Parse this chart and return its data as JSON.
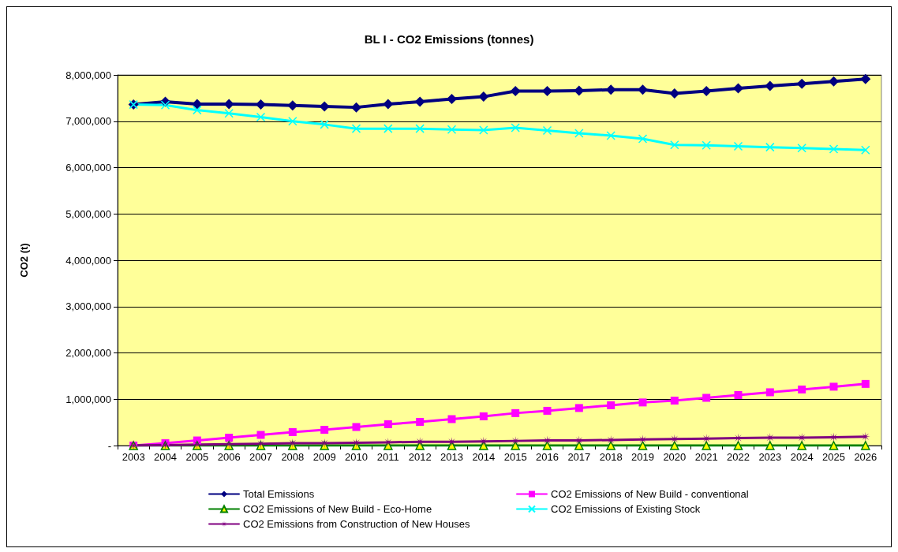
{
  "chart_data": {
    "type": "line",
    "title": "BL I - CO2 Emissions (tonnes)",
    "ylabel": "CO2 (t)",
    "categories": [
      "2003",
      "2004",
      "2005",
      "2006",
      "2007",
      "2008",
      "2009",
      "2010",
      "2011",
      "2012",
      "2013",
      "2014",
      "2015",
      "2016",
      "2017",
      "2018",
      "2019",
      "2020",
      "2021",
      "2022",
      "2023",
      "2024",
      "2025",
      "2026"
    ],
    "ylim": [
      0,
      8000000
    ],
    "yticks": [
      {
        "value": 0,
        "label": "-"
      },
      {
        "value": 1000000,
        "label": "1,000,000"
      },
      {
        "value": 2000000,
        "label": "2,000,000"
      },
      {
        "value": 3000000,
        "label": "3,000,000"
      },
      {
        "value": 4000000,
        "label": "4,000,000"
      },
      {
        "value": 5000000,
        "label": "5,000,000"
      },
      {
        "value": 6000000,
        "label": "6,000,000"
      },
      {
        "value": 7000000,
        "label": "7,000,000"
      },
      {
        "value": 8000000,
        "label": "8,000,000"
      }
    ],
    "grid": "y",
    "legend": "bottom",
    "series": [
      {
        "name": "Total Emissions",
        "color": "#000080",
        "marker": "diamond",
        "values": [
          7360000,
          7420000,
          7370000,
          7370000,
          7360000,
          7340000,
          7320000,
          7300000,
          7370000,
          7420000,
          7480000,
          7530000,
          7650000,
          7650000,
          7660000,
          7680000,
          7680000,
          7600000,
          7650000,
          7710000,
          7760000,
          7810000,
          7860000,
          7910000
        ]
      },
      {
        "name": "CO2 Emissions of New Build - conventional",
        "color": "#ff00ff",
        "marker": "square",
        "values": [
          0,
          50000,
          110000,
          170000,
          230000,
          290000,
          340000,
          400000,
          460000,
          510000,
          570000,
          630000,
          700000,
          750000,
          810000,
          870000,
          930000,
          970000,
          1030000,
          1090000,
          1150000,
          1210000,
          1270000,
          1330000
        ]
      },
      {
        "name": "CO2 Emissions of New Build - Eco-Home",
        "color": "#008000",
        "marker": "triangle",
        "values": [
          0,
          0,
          0,
          0,
          0,
          0,
          0,
          0,
          0,
          0,
          0,
          0,
          0,
          0,
          0,
          0,
          0,
          0,
          0,
          0,
          0,
          0,
          0,
          0
        ]
      },
      {
        "name": "CO2 Emissions of Existing Stock",
        "color": "#00ffff",
        "marker": "cross",
        "values": [
          7360000,
          7350000,
          7240000,
          7170000,
          7090000,
          7000000,
          6930000,
          6840000,
          6840000,
          6840000,
          6820000,
          6810000,
          6860000,
          6800000,
          6740000,
          6690000,
          6620000,
          6490000,
          6480000,
          6460000,
          6440000,
          6420000,
          6400000,
          6380000
        ]
      },
      {
        "name": "CO2 Emissions from Construction of New Houses",
        "color": "#800080",
        "marker": "star",
        "values": [
          0,
          10000,
          20000,
          30000,
          40000,
          50000,
          50000,
          60000,
          70000,
          80000,
          80000,
          90000,
          100000,
          110000,
          110000,
          120000,
          130000,
          140000,
          150000,
          160000,
          170000,
          170000,
          180000,
          190000
        ]
      }
    ]
  }
}
